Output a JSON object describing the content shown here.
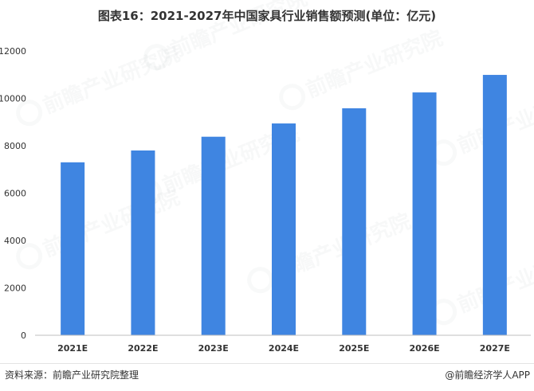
{
  "chart_data": {
    "type": "bar",
    "title": "图表16：2021-2027年中国家具行业销售额预测(单位：亿元)",
    "xlabel": "",
    "ylabel": "",
    "categories": [
      "2021E",
      "2022E",
      "2023E",
      "2024E",
      "2025E",
      "2026E",
      "2027E"
    ],
    "values": [
      7300,
      7800,
      8380,
      8940,
      9580,
      10250,
      10990
    ],
    "ylim": [
      0,
      12000
    ],
    "yticks": [
      0,
      2000,
      4000,
      6000,
      8000,
      10000,
      12000
    ],
    "grid": false,
    "legend": "none",
    "bar_color": "#3f85e1",
    "axis_color": "#bfbfbf"
  },
  "footer": {
    "source": "资料来源：前瞻产业研究院整理",
    "credit": "@前瞻经济学人APP"
  },
  "watermark": {
    "text": "前瞻产业研究院"
  }
}
